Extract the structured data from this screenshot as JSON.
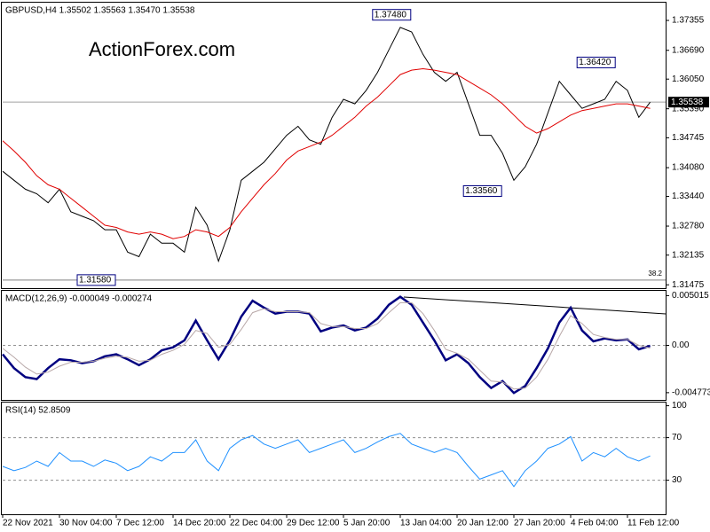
{
  "watermark": "ActionForex.com",
  "chart_data": [
    {
      "type": "line",
      "title": "GBPUSD,H4  1.35502 1.35563 1.35470 1.35538",
      "series": [
        {
          "color": "#000000",
          "values": [
            1.34,
            1.338,
            1.336,
            1.335,
            1.333,
            1.336,
            1.331,
            1.33,
            1.329,
            1.327,
            1.327,
            1.322,
            1.321,
            1.326,
            1.324,
            1.324,
            1.322,
            1.332,
            1.328,
            1.32,
            1.327,
            1.338,
            1.34,
            1.342,
            1.345,
            1.348,
            1.35,
            1.347,
            1.346,
            1.352,
            1.356,
            1.355,
            1.358,
            1.362,
            1.367,
            1.372,
            1.371,
            1.366,
            1.362,
            1.36,
            1.362,
            1.355,
            1.348,
            1.348,
            1.344,
            1.338,
            1.341,
            1.346,
            1.353,
            1.36,
            1.357,
            1.354,
            1.355,
            1.356,
            1.36,
            1.358,
            1.352,
            1.35538
          ]
        },
        {
          "color": "#e00000",
          "values": [
            1.3468,
            1.3445,
            1.342,
            1.339,
            1.337,
            1.336,
            1.334,
            1.332,
            1.33,
            1.328,
            1.3275,
            1.3265,
            1.326,
            1.3265,
            1.326,
            1.325,
            1.3255,
            1.327,
            1.3265,
            1.3255,
            1.3275,
            1.331,
            1.334,
            1.337,
            1.3395,
            1.3425,
            1.3445,
            1.3455,
            1.3465,
            1.348,
            1.35,
            1.352,
            1.3545,
            1.3565,
            1.359,
            1.3615,
            1.3625,
            1.3628,
            1.3625,
            1.362,
            1.3615,
            1.36,
            1.3585,
            1.357,
            1.355,
            1.3525,
            1.35,
            1.3485,
            1.3495,
            1.351,
            1.3525,
            1.3535,
            1.354,
            1.3545,
            1.355,
            1.355,
            1.3545,
            1.354
          ]
        }
      ],
      "ylim": [
        1.314,
        1.3775
      ],
      "yticks": [
        1.37355,
        {
          "value": 1.3669,
          "label": "1.36690"
        },
        {
          "value": 1.3605,
          "label": "1.36050"
        },
        {
          "value": 1.3539,
          "label": "1.35390"
        },
        1.34745,
        {
          "value": 1.3408,
          "label": "1.34080"
        },
        {
          "value": 1.3344,
          "label": "1.33440"
        },
        {
          "value": 1.3278,
          "label": "1.32780"
        },
        1.32135,
        1.31475
      ],
      "annotations": [
        {
          "label": "1.37480",
          "value": 1.3748,
          "index": 36
        },
        {
          "label": "1.36420",
          "value": 1.3642,
          "index": 54
        },
        {
          "label": "1.33560",
          "value": 1.3356,
          "index": 44
        },
        {
          "label": "1.31580",
          "value": 1.3158,
          "index": 10
        }
      ],
      "fib_level": {
        "label": "38.2",
        "value": 1.3158
      },
      "last_price": 1.35538
    },
    {
      "type": "line",
      "title": "MACD(12,26,9) -0.000049 -0.000274",
      "series": [
        {
          "color": "#000080",
          "values": [
            -0.0009,
            -0.0023,
            -0.0032,
            -0.0034,
            -0.0023,
            -0.0014,
            -0.0015,
            -0.0018,
            -0.0016,
            -0.0011,
            -0.0009,
            -0.0014,
            -0.002,
            -0.0014,
            -0.0005,
            -0.0002,
            0.0005,
            0.0025,
            0.0005,
            -0.0014,
            0.0005,
            0.0029,
            0.0045,
            0.0038,
            0.0032,
            0.0034,
            0.0034,
            0.0032,
            0.0014,
            0.0018,
            0.002,
            0.0015,
            0.0018,
            0.0027,
            0.0041,
            0.0049,
            0.0041,
            0.0023,
            0.0005,
            -0.0015,
            -0.0009,
            -0.0018,
            -0.0032,
            -0.0043,
            -0.0036,
            -0.0048,
            -0.0041,
            -0.0023,
            -0.0003,
            0.0023,
            0.0038,
            0.0015,
            0.0004,
            0.0007,
            0.0005,
            0.0006,
            -0.0004,
            -4.9e-05
          ]
        },
        {
          "color": "#b8a8a8",
          "values": [
            -0.0003,
            -0.0012,
            -0.0022,
            -0.0029,
            -0.0027,
            -0.0021,
            -0.0017,
            -0.0017,
            -0.0016,
            -0.0013,
            -0.0011,
            -0.0012,
            -0.0016,
            -0.0015,
            -0.0009,
            -0.0005,
            0.0001,
            0.0015,
            0.0012,
            -0.0002,
            0.0001,
            0.0016,
            0.0033,
            0.0037,
            0.0034,
            0.0034,
            0.0034,
            0.0033,
            0.0022,
            0.0019,
            0.0019,
            0.0017,
            0.0017,
            0.0022,
            0.0033,
            0.0043,
            0.0043,
            0.0032,
            0.0015,
            -0.0004,
            -0.0008,
            -0.0014,
            -0.0025,
            -0.0036,
            -0.0037,
            -0.0044,
            -0.0043,
            -0.0032,
            -0.0014,
            0.0009,
            0.003,
            0.0022,
            0.0011,
            0.0008,
            0.0006,
            0.0006,
            0.0,
            -0.000274
          ]
        }
      ],
      "ylim": [
        -0.0055,
        0.0055
      ],
      "yticks": [
        0.005015,
        {
          "value": 0,
          "label": "0.00"
        },
        -0.004773
      ],
      "levels": [
        0
      ]
    },
    {
      "type": "line",
      "title": "RSI(14) 52.8509",
      "categories": [
        "22 Nov 2021",
        null,
        null,
        null,
        null,
        "30 Nov 04:00",
        null,
        null,
        null,
        null,
        "7 Dec 12:00",
        null,
        null,
        null,
        null,
        "14 Dec 20:00",
        null,
        null,
        null,
        null,
        "22 Dec 04:00",
        null,
        null,
        null,
        null,
        "29 Dec 12:00",
        null,
        null,
        null,
        null,
        "5 Jan 20:00",
        null,
        null,
        null,
        null,
        "13 Jan 04:00",
        null,
        null,
        null,
        null,
        "20 Jan 12:00",
        null,
        null,
        null,
        null,
        "27 Jan 20:00",
        null,
        null,
        null,
        null,
        "4 Feb 04:00",
        null,
        null,
        null,
        null,
        "11 Feb 12:00",
        null,
        null
      ],
      "series": [
        {
          "color": "#1e90ff",
          "values": [
            43,
            39,
            42,
            48,
            43,
            56,
            48,
            48,
            43,
            49,
            46,
            39,
            43,
            52,
            48,
            56,
            56,
            68,
            48,
            39,
            60,
            68,
            72,
            64,
            60,
            64,
            68,
            56,
            60,
            64,
            68,
            56,
            60,
            66,
            71,
            74,
            64,
            60,
            56,
            60,
            56,
            43,
            31,
            35,
            39,
            24,
            39,
            48,
            60,
            64,
            71,
            48,
            56,
            52,
            60,
            52,
            48,
            52.8509
          ]
        }
      ],
      "ylim": [
        -2,
        103
      ],
      "yticks": [
        100,
        70,
        30
      ],
      "levels": [
        70,
        30
      ]
    }
  ]
}
